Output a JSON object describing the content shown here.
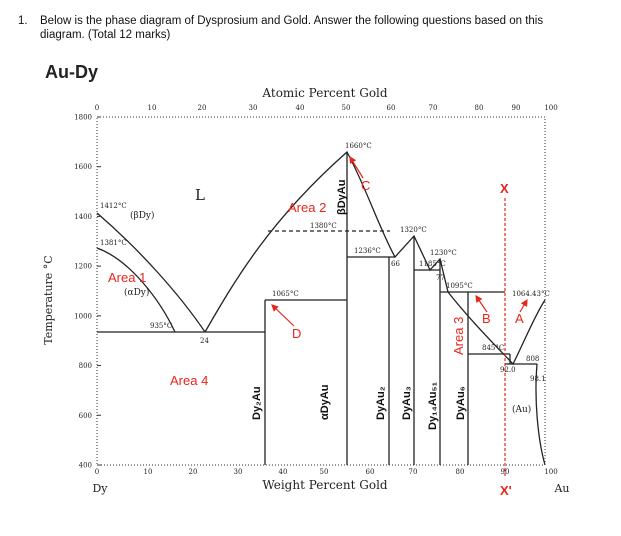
{
  "question": {
    "number": "1.",
    "text": "Below is the phase diagram of Dysprosium and Gold. Answer the following questions based on this diagram. (Total 12 marks)"
  },
  "diagram": {
    "title": "Au-Dy",
    "top_axis_label": "Atomic Percent Gold",
    "bottom_axis_label": "Weight Percent Gold",
    "y_axis_label": "Temperature °C",
    "top_ticks": [
      "0",
      "10",
      "20",
      "30",
      "40",
      "50",
      "60",
      "70",
      "80",
      "90",
      "100"
    ],
    "bottom_ticks": [
      "0",
      "10",
      "20",
      "30",
      "40",
      "50",
      "60",
      "70",
      "80",
      "90",
      "100"
    ],
    "y_ticks": [
      "1800",
      "1600",
      "1400",
      "1200",
      "1000",
      "800",
      "600",
      "400"
    ],
    "left_element": "Dy",
    "right_element": "Au",
    "temperatures": [
      "1660°C",
      "1412°C",
      "1381°C",
      "1380°C",
      "1236°C",
      "1320°C",
      "1230°C",
      "1185°C",
      "1095°C",
      "1065°C",
      "1064.43°C",
      "935°C",
      "845°C",
      "808",
      "92.0",
      "98.1",
      "24",
      "66",
      "77"
    ],
    "phases": [
      "L",
      "(βDy)",
      "(αDy)",
      "Dy₂Au",
      "αDyAu",
      "βDyAu",
      "DyAu₂",
      "DyAu₃",
      "Dy₁₄Au₅₁",
      "DyAu₆",
      "(Au)"
    ],
    "annotations": [
      "Area 1",
      "Area 2",
      "Area 3",
      "Area 4",
      "A",
      "B",
      "C",
      "D",
      "X",
      "X'"
    ]
  }
}
